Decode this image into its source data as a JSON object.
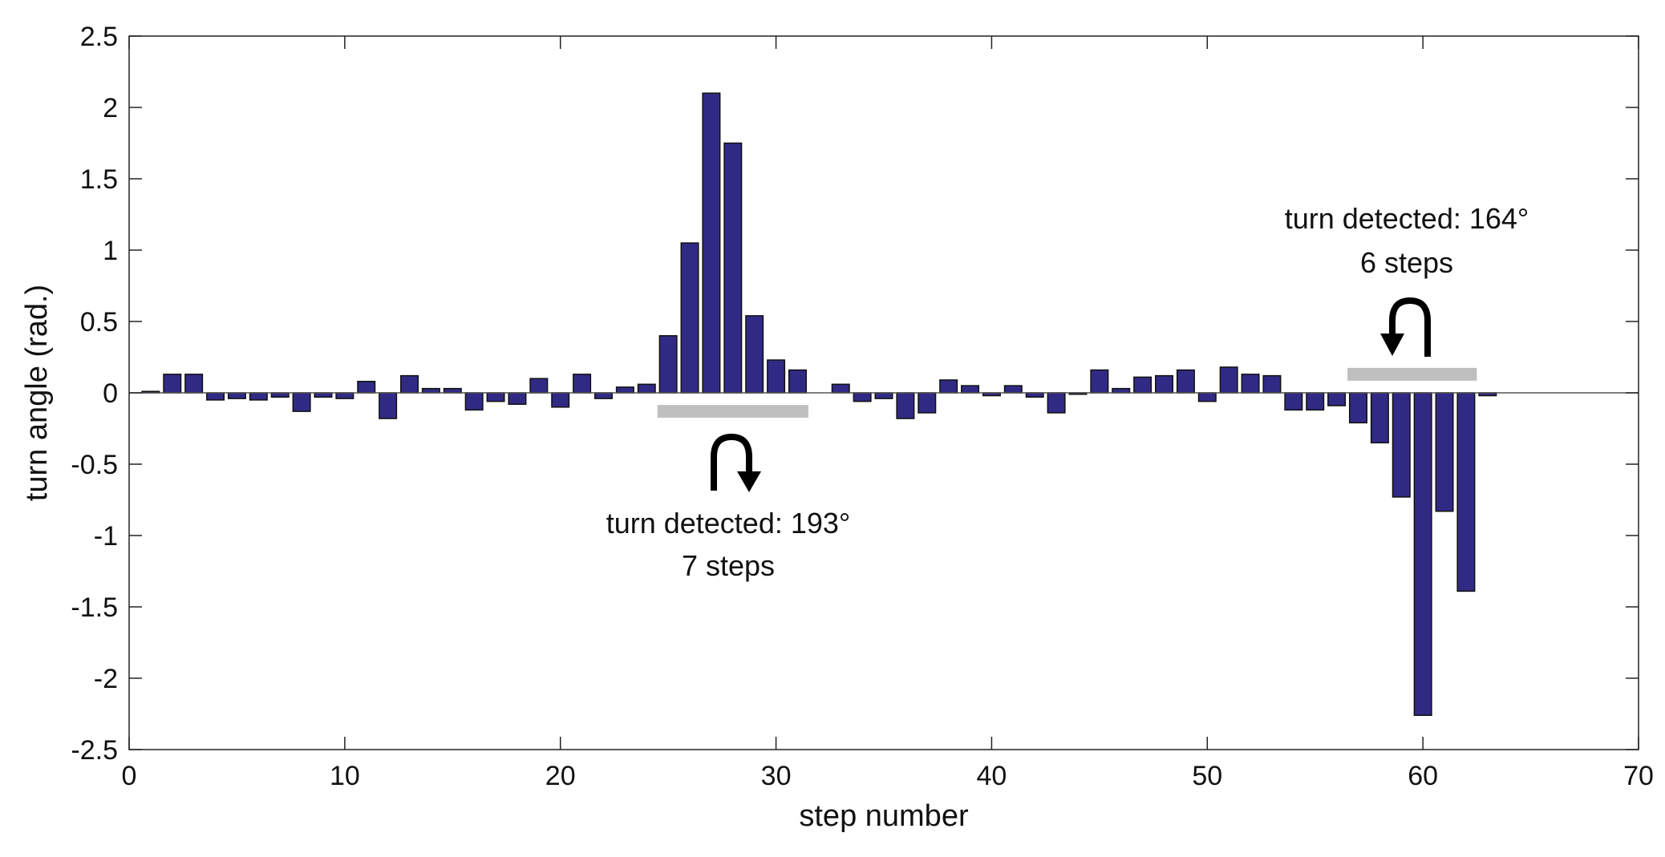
{
  "chart_data": {
    "type": "bar",
    "title": "",
    "xlabel": "step number",
    "ylabel": "turn angle (rad.)",
    "xlim": [
      0,
      70
    ],
    "ylim": [
      -2.5,
      2.5
    ],
    "x_ticks": [
      0,
      10,
      20,
      30,
      40,
      50,
      60,
      70
    ],
    "x_tick_labels": [
      "0",
      "10",
      "20",
      "30",
      "40",
      "50",
      "60",
      "70"
    ],
    "y_ticks": [
      -2.5,
      -2,
      -1.5,
      -1,
      -0.5,
      0,
      0.5,
      1,
      1.5,
      2,
      2.5
    ],
    "y_tick_labels": [
      "-2.5",
      "-2",
      "-1.5",
      "-1",
      "-0.5",
      "0",
      "0.5",
      "1",
      "1.5",
      "2",
      "2.5"
    ],
    "grid": false,
    "bar_color": "#312a85",
    "x": [
      1,
      2,
      3,
      4,
      5,
      6,
      7,
      8,
      9,
      10,
      11,
      12,
      13,
      14,
      15,
      16,
      17,
      18,
      19,
      20,
      21,
      22,
      23,
      24,
      25,
      26,
      27,
      28,
      29,
      30,
      31,
      32,
      33,
      34,
      35,
      36,
      37,
      38,
      39,
      40,
      41,
      42,
      43,
      44,
      45,
      46,
      47,
      48,
      49,
      50,
      51,
      52,
      53,
      54,
      55,
      56,
      57,
      58,
      59,
      60,
      61,
      62,
      63
    ],
    "values": [
      0.01,
      0.13,
      0.13,
      -0.05,
      -0.04,
      -0.05,
      -0.03,
      -0.13,
      -0.03,
      -0.04,
      0.08,
      -0.18,
      0.12,
      0.03,
      0.03,
      -0.12,
      -0.06,
      -0.08,
      0.1,
      -0.1,
      0.13,
      -0.04,
      0.04,
      0.06,
      0.4,
      1.05,
      2.1,
      1.75,
      0.54,
      0.23,
      0.16,
      0.0,
      0.06,
      -0.06,
      -0.04,
      -0.18,
      -0.14,
      0.09,
      0.05,
      -0.02,
      0.05,
      -0.03,
      -0.14,
      -0.01,
      0.16,
      0.03,
      0.11,
      0.12,
      0.16,
      -0.06,
      0.18,
      0.13,
      0.12,
      -0.12,
      -0.12,
      -0.09,
      -0.21,
      -0.35,
      -0.73,
      -2.26,
      -0.83,
      -1.39,
      -0.02
    ],
    "annotations": [
      {
        "label_line1": "turn detected: 193°",
        "label_line2": "7 steps",
        "span": [
          24.5,
          31.5
        ],
        "bar_y": -0.13,
        "direction": "right",
        "color": "#bfbfbf"
      },
      {
        "label_line1": "turn detected: 164°",
        "label_line2": "6 steps",
        "span": [
          56.5,
          62.5
        ],
        "bar_y": 0.13,
        "direction": "left",
        "color": "#bfbfbf"
      }
    ]
  }
}
